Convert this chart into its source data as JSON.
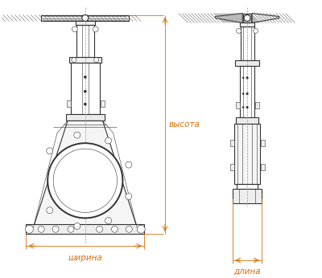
{
  "bg_color": "#ffffff",
  "line_color": "#333333",
  "dim_color": "#d4700a",
  "label_ширина": "ширина",
  "label_длина": "длина",
  "label_высота": "высота",
  "fig_width": 4.0,
  "fig_height": 3.46
}
